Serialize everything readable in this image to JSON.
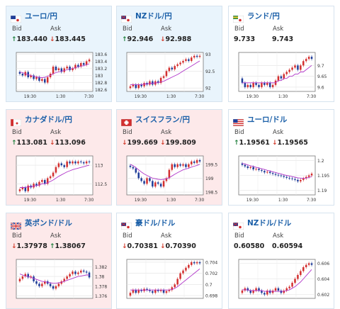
{
  "labels": {
    "bid": "Bid",
    "ask": "Ask"
  },
  "colors": {
    "up_bg": "#e9f4fc",
    "down_bg": "#fde9ea",
    "link": "#1a5fa8",
    "up_arrow": "#1c7e3a",
    "down_arrow": "#d23a2a",
    "candle_up": "#d32f2f",
    "candle_down": "#1f3d99",
    "ma": "#b135c9"
  },
  "cards": [
    {
      "name": "ユーロ/円",
      "flag": "eu-flag-icon",
      "bg": "up",
      "bid_arrow": "↑",
      "bid": "183.440",
      "bid_dir": "up",
      "ask_arrow": "↓",
      "ask": "183.445",
      "ask_dir": "down",
      "chart_data": {
        "type": "candlestick",
        "x_ticks": [
          "19:30",
          "1:30",
          "7:30"
        ],
        "y_ticks": [
          "183.6",
          "183.4",
          "183.2",
          "183",
          "182.8",
          "182.6"
        ],
        "ylim": [
          182.55,
          183.65
        ],
        "closes": [
          183.05,
          183.0,
          183.1,
          182.95,
          183.0,
          182.9,
          182.95,
          182.85,
          182.9,
          182.8,
          182.95,
          183.05,
          183.25,
          183.15,
          183.2,
          183.1,
          183.2,
          183.25,
          183.15,
          183.2,
          183.3,
          183.25,
          183.35,
          183.3,
          183.4,
          183.45
        ],
        "ma": [
          183.1,
          183.08,
          183.05,
          183.02,
          183.0,
          182.98,
          182.96,
          182.95,
          182.94,
          182.95,
          182.98,
          183.0,
          183.05,
          183.08,
          183.1,
          183.12,
          183.14,
          183.16,
          183.18,
          183.2,
          183.22,
          183.24,
          183.26,
          183.28,
          183.3,
          183.33
        ]
      }
    },
    {
      "name": "NZドル/円",
      "flag": "nz-flag-icon",
      "bg": "up",
      "bid_arrow": "↑",
      "bid": "92.946",
      "bid_dir": "up",
      "ask_arrow": "↓",
      "ask": "92.988",
      "ask_dir": "down",
      "chart_data": {
        "type": "candlestick",
        "x_ticks": [
          "19:30",
          "1:30",
          "7:30"
        ],
        "y_ticks": [
          "93",
          "92.5",
          "92"
        ],
        "ylim": [
          91.9,
          93.05
        ],
        "closes": [
          92.05,
          92.1,
          92.0,
          92.1,
          92.05,
          92.15,
          92.1,
          92.2,
          92.1,
          92.2,
          92.15,
          92.3,
          92.35,
          92.5,
          92.6,
          92.55,
          92.65,
          92.7,
          92.75,
          92.8,
          92.85,
          92.8,
          92.9,
          92.95,
          92.92,
          92.95
        ],
        "ma": [
          92.1,
          92.1,
          92.1,
          92.1,
          92.1,
          92.12,
          92.12,
          92.14,
          92.14,
          92.15,
          92.16,
          92.18,
          92.2,
          92.24,
          92.28,
          92.32,
          92.36,
          92.4,
          92.45,
          92.5,
          92.55,
          92.6,
          92.65,
          92.7,
          92.75,
          92.8
        ]
      }
    },
    {
      "name": "ランド/円",
      "flag": "za-flag-icon",
      "bg": "flat",
      "bid_arrow": "",
      "bid": "9.733",
      "bid_dir": "",
      "ask_arrow": "",
      "ask": "9.743",
      "ask_dir": "",
      "chart_data": {
        "type": "candlestick",
        "x_ticks": [
          "19:30",
          "1:30",
          "7:30"
        ],
        "y_ticks": [
          "9.7",
          "9.65",
          "9.6"
        ],
        "ylim": [
          9.58,
          9.76
        ],
        "closes": [
          9.62,
          9.6,
          9.61,
          9.6,
          9.62,
          9.61,
          9.6,
          9.62,
          9.61,
          9.62,
          9.6,
          9.61,
          9.63,
          9.65,
          9.64,
          9.66,
          9.67,
          9.68,
          9.69,
          9.7,
          9.68,
          9.7,
          9.72,
          9.73,
          9.74,
          9.73
        ],
        "ma": [
          9.62,
          9.62,
          9.62,
          9.62,
          9.62,
          9.62,
          9.62,
          9.62,
          9.62,
          9.62,
          9.62,
          9.62,
          9.62,
          9.63,
          9.63,
          9.64,
          9.64,
          9.65,
          9.65,
          9.66,
          9.66,
          9.67,
          9.67,
          9.68,
          9.69,
          9.7
        ]
      }
    },
    {
      "name": "カナダドル/円",
      "flag": "ca-flag-icon",
      "bg": "down",
      "bid_arrow": "↑",
      "bid": "113.081",
      "bid_dir": "up",
      "ask_arrow": "↓",
      "ask": "113.096",
      "ask_dir": "down",
      "chart_data": {
        "type": "candlestick",
        "x_ticks": [
          "19:30",
          "1:30",
          "7:30"
        ],
        "y_ticks": [
          "113",
          "112.5"
        ],
        "ylim": [
          112.2,
          113.25
        ],
        "closes": [
          112.35,
          112.4,
          112.3,
          112.45,
          112.4,
          112.5,
          112.45,
          112.55,
          112.6,
          112.5,
          112.65,
          112.7,
          112.8,
          112.95,
          113.05,
          113.0,
          112.95,
          113.1,
          113.05,
          113.1,
          113.05,
          113.1,
          113.08,
          113.05,
          113.1,
          113.08
        ],
        "ma": [
          112.4,
          112.4,
          112.4,
          112.42,
          112.42,
          112.44,
          112.45,
          112.47,
          112.5,
          112.5,
          112.53,
          112.56,
          112.6,
          112.65,
          112.7,
          112.74,
          112.78,
          112.82,
          112.85,
          112.88,
          112.9,
          112.92,
          112.94,
          112.96,
          112.98,
          113.0
        ]
      }
    },
    {
      "name": "スイスフラン/円",
      "flag": "ch-flag-icon",
      "bg": "down",
      "bid_arrow": "↓",
      "bid": "199.669",
      "bid_dir": "down",
      "ask_arrow": "↓",
      "ask": "199.809",
      "ask_dir": "down",
      "chart_data": {
        "type": "candlestick",
        "x_ticks": [
          "19:30",
          "1:30",
          "7:30"
        ],
        "y_ticks": [
          "199.5",
          "199",
          "198.5"
        ],
        "ylim": [
          198.4,
          199.8
        ],
        "closes": [
          199.4,
          199.35,
          199.2,
          199.0,
          198.9,
          198.8,
          199.0,
          198.9,
          198.7,
          198.85,
          198.8,
          198.7,
          198.9,
          199.0,
          199.3,
          199.5,
          199.4,
          199.5,
          199.45,
          199.5,
          199.4,
          199.5,
          199.6,
          199.55,
          199.65,
          199.6
        ],
        "ma": [
          199.5,
          199.45,
          199.38,
          199.3,
          199.22,
          199.15,
          199.1,
          199.05,
          199.0,
          198.98,
          198.96,
          198.95,
          198.96,
          198.98,
          199.02,
          199.08,
          199.14,
          199.2,
          199.25,
          199.3,
          199.33,
          199.36,
          199.4,
          199.43,
          199.46,
          199.5
        ]
      }
    },
    {
      "name": "ユーロ/ドル",
      "flag": "us-flag-icon",
      "bg": "flat",
      "bid_arrow": "↑",
      "bid": "1.19561",
      "bid_dir": "up",
      "ask_arrow": "↓",
      "ask": "1.19565",
      "ask_dir": "down",
      "chart_data": {
        "type": "candlestick",
        "x_ticks": [
          "19:30",
          "1:30",
          "7:30"
        ],
        "y_ticks": [
          "1.2",
          "1.195",
          "1.19"
        ],
        "ylim": [
          1.1885,
          1.2015
        ],
        "closes": [
          1.1985,
          1.198,
          1.1975,
          1.1978,
          1.197,
          1.1972,
          1.1968,
          1.1965,
          1.196,
          1.1962,
          1.1958,
          1.1955,
          1.1952,
          1.195,
          1.1948,
          1.1945,
          1.1942,
          1.194,
          1.1938,
          1.1935,
          1.193,
          1.1935,
          1.194,
          1.1945,
          1.195,
          1.1956
        ],
        "ma": [
          1.199,
          1.1988,
          1.1985,
          1.1982,
          1.198,
          1.1977,
          1.1975,
          1.1972,
          1.197,
          1.1967,
          1.1965,
          1.1962,
          1.196,
          1.1957,
          1.1955,
          1.1952,
          1.195,
          1.1948,
          1.1946,
          1.1944,
          1.1942,
          1.1941,
          1.194,
          1.1941,
          1.1943,
          1.1946
        ]
      }
    },
    {
      "name": "英ポンド/ドル",
      "flag": "uk-flag-icon",
      "bg": "down",
      "bid_arrow": "↓",
      "bid": "1.37978",
      "bid_dir": "down",
      "ask_arrow": "↑",
      "ask": "1.38067",
      "ask_dir": "up",
      "chart_data": {
        "type": "candlestick",
        "x_ticks": [],
        "y_ticks": [
          "1.382",
          "1.38",
          "1.378",
          "1.376"
        ],
        "ylim": [
          1.3755,
          1.3835
        ],
        "closes": [
          1.3795,
          1.38,
          1.3805,
          1.3798,
          1.38,
          1.379,
          1.3785,
          1.378,
          1.3785,
          1.379,
          1.3785,
          1.378,
          1.3775,
          1.378,
          1.3785,
          1.379,
          1.3795,
          1.38,
          1.3805,
          1.381,
          1.3805,
          1.3808,
          1.3812,
          1.381,
          1.3808,
          1.3798
        ],
        "ma": [
          1.3805,
          1.3803,
          1.3801,
          1.38,
          1.3798,
          1.3796,
          1.3794,
          1.3792,
          1.379,
          1.3789,
          1.3788,
          1.3787,
          1.3786,
          1.3786,
          1.3787,
          1.3788,
          1.379,
          1.3792,
          1.3794,
          1.3796,
          1.3798,
          1.38,
          1.3801,
          1.3802,
          1.3803,
          1.3803
        ]
      }
    },
    {
      "name": "豪ドル/ドル",
      "flag": "au-flag-icon",
      "bg": "flat",
      "bid_arrow": "↓",
      "bid": "0.70381",
      "bid_dir": "down",
      "ask_arrow": "↓",
      "ask": "0.70390",
      "ask_dir": "down",
      "chart_data": {
        "type": "candlestick",
        "x_ticks": [],
        "y_ticks": [
          "0.704",
          "0.702",
          "0.7",
          "0.698"
        ],
        "ylim": [
          0.6975,
          0.7045
        ],
        "closes": [
          0.6985,
          0.699,
          0.6985,
          0.699,
          0.6988,
          0.6992,
          0.699,
          0.6988,
          0.6985,
          0.699,
          0.6988,
          0.699,
          0.6985,
          0.6988,
          0.699,
          0.6995,
          0.7,
          0.701,
          0.702,
          0.7025,
          0.703,
          0.7035,
          0.704,
          0.7038,
          0.704,
          0.7038
        ],
        "ma": [
          0.699,
          0.699,
          0.699,
          0.699,
          0.699,
          0.699,
          0.699,
          0.699,
          0.699,
          0.699,
          0.699,
          0.699,
          0.699,
          0.699,
          0.699,
          0.6991,
          0.6993,
          0.6996,
          0.7,
          0.7004,
          0.7008,
          0.7012,
          0.7016,
          0.702,
          0.7024,
          0.7028
        ]
      }
    },
    {
      "name": "NZドル/ドル",
      "flag": "nz-flag-icon",
      "bg": "flat",
      "bid_arrow": "",
      "bid": "0.60580",
      "bid_dir": "",
      "ask_arrow": "",
      "ask": "0.60594",
      "ask_dir": "",
      "chart_data": {
        "type": "candlestick",
        "x_ticks": [],
        "y_ticks": [
          "0.606",
          "0.604",
          "0.602"
        ],
        "ylim": [
          0.6015,
          0.6065
        ],
        "closes": [
          0.6025,
          0.6028,
          0.6025,
          0.6022,
          0.6025,
          0.6028,
          0.6025,
          0.6022,
          0.602,
          0.6025,
          0.6022,
          0.6025,
          0.6028,
          0.6025,
          0.6022,
          0.6025,
          0.6028,
          0.603,
          0.6035,
          0.604,
          0.6045,
          0.605,
          0.6055,
          0.6058,
          0.606,
          0.6058
        ],
        "ma": [
          0.6026,
          0.6026,
          0.6026,
          0.6025,
          0.6025,
          0.6025,
          0.6025,
          0.6025,
          0.6024,
          0.6024,
          0.6024,
          0.6024,
          0.6024,
          0.6024,
          0.6024,
          0.6024,
          0.6025,
          0.6026,
          0.6028,
          0.603,
          0.6033,
          0.6036,
          0.604,
          0.6044,
          0.6048,
          0.6052
        ]
      }
    }
  ]
}
